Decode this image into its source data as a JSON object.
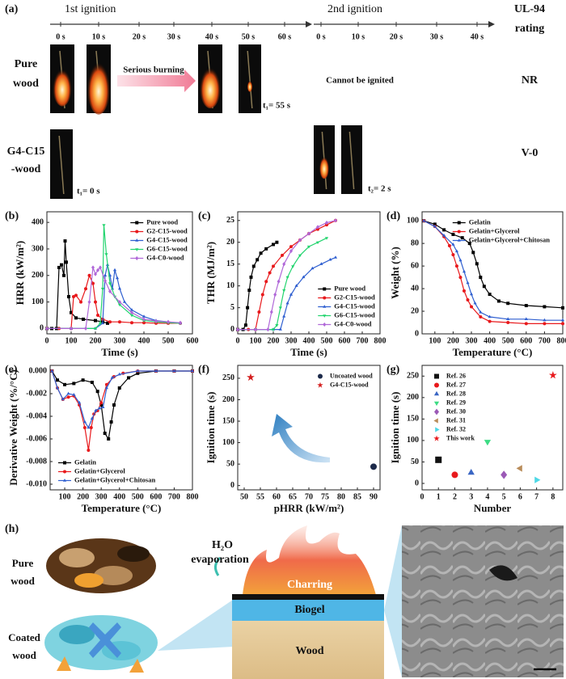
{
  "panel_a": {
    "label": "(a)",
    "first_ignition": "1st ignition",
    "first_ticks": [
      "0 s",
      "10 s",
      "20 s",
      "30 s",
      "40 s",
      "50 s",
      "60 s"
    ],
    "second_ignition": "2nd ignition",
    "second_ticks": [
      "0 s",
      "10 s",
      "20 s",
      "30 s",
      "40 s"
    ],
    "rating_title": [
      "UL-94",
      "rating"
    ],
    "rows": [
      {
        "sample": [
          "Pure",
          "wood"
        ],
        "annotation": "Serious burning",
        "time": "t₁= 55 s",
        "second": "Cannot be ignited",
        "rating": "NR"
      },
      {
        "sample": [
          "G4-C15",
          "-wood"
        ],
        "time": "t₁= 0 s",
        "second": "t₂= 2 s",
        "rating": "V-0"
      }
    ]
  },
  "chart_data": [
    {
      "type": "line",
      "panel": "(b)",
      "xlabel": "Time (s)",
      "ylabel": "HRR (kW/m²)",
      "xlim": [
        0,
        600
      ],
      "ylim": [
        -20,
        440
      ],
      "xticks": [
        0,
        100,
        200,
        300,
        400,
        500,
        600
      ],
      "yticks": [
        0,
        100,
        200,
        300,
        400
      ],
      "legend": "upper right",
      "series": [
        {
          "name": "Pure wood",
          "color": "#000000",
          "marker": "square",
          "x": [
            0,
            20,
            40,
            50,
            60,
            70,
            75,
            80,
            90,
            100,
            120,
            150,
            200,
            230,
            250
          ],
          "values": [
            0,
            0,
            0,
            230,
            240,
            200,
            330,
            250,
            120,
            60,
            40,
            35,
            30,
            25,
            20
          ]
        },
        {
          "name": "G2-C15-wood",
          "color": "#e8191c",
          "marker": "circle",
          "x": [
            0,
            50,
            100,
            110,
            120,
            140,
            160,
            175,
            190,
            200,
            210,
            230,
            260,
            300,
            350,
            400,
            450,
            500,
            550
          ],
          "values": [
            0,
            0,
            0,
            120,
            125,
            100,
            150,
            200,
            170,
            100,
            50,
            35,
            25,
            25,
            22,
            22,
            20,
            20,
            20
          ]
        },
        {
          "name": "G4-C15-wood",
          "color": "#2f5fd0",
          "marker": "triangle-up",
          "x": [
            0,
            100,
            200,
            230,
            240,
            250,
            260,
            270,
            280,
            290,
            300,
            320,
            350,
            400,
            450,
            500,
            550
          ],
          "values": [
            0,
            0,
            0,
            20,
            200,
            240,
            200,
            150,
            220,
            190,
            150,
            100,
            70,
            45,
            30,
            25,
            20
          ]
        },
        {
          "name": "G6-C15-wood",
          "color": "#22d46e",
          "marker": "triangle-down",
          "x": [
            0,
            100,
            200,
            220,
            230,
            235,
            245,
            260,
            280,
            300,
            350,
            400,
            450,
            500,
            550
          ],
          "values": [
            0,
            0,
            0,
            20,
            150,
            390,
            280,
            170,
            120,
            90,
            50,
            30,
            25,
            22,
            20
          ]
        },
        {
          "name": "G4-C0-wood",
          "color": "#b068d8",
          "marker": "diamond",
          "x": [
            0,
            100,
            160,
            175,
            190,
            200,
            210,
            220,
            240,
            260,
            300,
            350,
            400,
            450,
            500,
            550
          ],
          "values": [
            0,
            0,
            0,
            100,
            230,
            205,
            220,
            230,
            180,
            140,
            100,
            60,
            35,
            28,
            25,
            22
          ]
        }
      ]
    },
    {
      "type": "line",
      "panel": "(c)",
      "xlabel": "Time (s)",
      "ylabel": "THR (MJ/m²)",
      "xlim": [
        0,
        800
      ],
      "ylim": [
        -1,
        27
      ],
      "xticks": [
        0,
        100,
        200,
        300,
        400,
        500,
        600,
        700,
        800
      ],
      "yticks": [
        0,
        5,
        10,
        15,
        20,
        25
      ],
      "legend": "lower right",
      "series": [
        {
          "name": "Pure wood",
          "color": "#000000",
          "marker": "square",
          "x": [
            0,
            30,
            45,
            55,
            65,
            75,
            90,
            110,
            130,
            160,
            200,
            220
          ],
          "values": [
            0,
            0,
            1,
            5,
            9,
            12,
            14.5,
            16,
            17.5,
            18.5,
            19.5,
            20
          ]
        },
        {
          "name": "G2-C15-wood",
          "color": "#e8191c",
          "marker": "circle",
          "x": [
            0,
            60,
            100,
            120,
            140,
            160,
            180,
            200,
            250,
            300,
            350,
            400,
            450,
            500,
            550
          ],
          "values": [
            0,
            0,
            0,
            4,
            8,
            11,
            13,
            14.5,
            17,
            19,
            20.5,
            22,
            23,
            24,
            25
          ]
        },
        {
          "name": "G4-C15-wood",
          "color": "#2f5fd0",
          "marker": "triangle-up",
          "x": [
            0,
            100,
            200,
            240,
            260,
            280,
            300,
            330,
            370,
            420,
            470,
            520,
            550
          ],
          "values": [
            0,
            0,
            0,
            0,
            3,
            6,
            8,
            10,
            12,
            14,
            15,
            16,
            16.5
          ]
        },
        {
          "name": "G6-C15-wood",
          "color": "#22d46e",
          "marker": "triangle-down",
          "x": [
            0,
            100,
            200,
            220,
            240,
            260,
            280,
            310,
            350,
            400,
            450,
            500
          ],
          "values": [
            0,
            0,
            0,
            1,
            5,
            9,
            12,
            14.5,
            17,
            19,
            20,
            21
          ]
        },
        {
          "name": "G4-C0-wood",
          "color": "#b068d8",
          "marker": "diamond",
          "x": [
            0,
            100,
            170,
            190,
            210,
            230,
            260,
            300,
            350,
            400,
            450,
            500,
            550
          ],
          "values": [
            0,
            0,
            0,
            4,
            8,
            11,
            15,
            18,
            20.5,
            22,
            23.5,
            24.5,
            25
          ]
        }
      ]
    },
    {
      "type": "line",
      "panel": "(d)",
      "xlabel": "Temperature (°C)",
      "ylabel": "Weight (%)",
      "xlim": [
        30,
        800
      ],
      "ylim": [
        0,
        108
      ],
      "xticks": [
        100,
        200,
        300,
        400,
        500,
        600,
        700,
        800
      ],
      "yticks": [
        0,
        20,
        40,
        60,
        80,
        100
      ],
      "legend": "upper right",
      "series": [
        {
          "name": "Gelatin",
          "color": "#000000",
          "marker": "square",
          "x": [
            40,
            100,
            150,
            200,
            250,
            290,
            310,
            330,
            350,
            370,
            400,
            450,
            500,
            600,
            700,
            800
          ],
          "values": [
            100,
            97,
            92,
            88,
            85,
            80,
            72,
            62,
            50,
            42,
            35,
            29,
            27,
            25,
            24,
            23
          ]
        },
        {
          "name": "Gelatin+Glycerol",
          "color": "#e8191c",
          "marker": "circle",
          "x": [
            40,
            100,
            150,
            180,
            200,
            220,
            240,
            260,
            280,
            300,
            350,
            400,
            500,
            600,
            700,
            800
          ],
          "values": [
            100,
            95,
            86,
            78,
            70,
            60,
            50,
            38,
            30,
            24,
            15,
            11,
            10,
            9,
            9,
            9
          ]
        },
        {
          "name": "Gelatin+Glycerol+Chitosan",
          "color": "#2f5fd0",
          "marker": "triangle-up",
          "x": [
            40,
            100,
            150,
            200,
            220,
            240,
            260,
            280,
            300,
            320,
            350,
            400,
            500,
            600,
            700,
            800
          ],
          "values": [
            100,
            95,
            87,
            79,
            73,
            65,
            55,
            45,
            35,
            27,
            19,
            15,
            13,
            13,
            12,
            12
          ]
        }
      ]
    },
    {
      "type": "line",
      "panel": "(e)",
      "xlabel": "Temperature (°C)",
      "ylabel": "Derivative Weight (%/°C)",
      "xlim": [
        20,
        800
      ],
      "ylim": [
        -0.0105,
        0.0005
      ],
      "xticks": [
        100,
        200,
        300,
        400,
        500,
        600,
        700,
        800
      ],
      "yticks": [
        {
          "value": 0,
          "label": "0.000"
        },
        -0.002,
        -0.004,
        -0.006,
        -0.008,
        {
          "value": -0.01,
          "label": "-0.010"
        }
      ],
      "legend": "lower left",
      "series": [
        {
          "name": "Gelatin",
          "color": "#000000",
          "marker": "square",
          "x": [
            30,
            60,
            100,
            150,
            200,
            250,
            280,
            300,
            320,
            340,
            355,
            370,
            400,
            450,
            500,
            600,
            700,
            800
          ],
          "values": [
            0,
            -0.0008,
            -0.0012,
            -0.0011,
            -0.0008,
            -0.001,
            -0.0018,
            -0.003,
            -0.0055,
            -0.006,
            -0.0045,
            -0.003,
            -0.0015,
            -0.0006,
            -0.0002,
            0,
            0,
            0
          ]
        },
        {
          "name": "Gelatin+Glycerol",
          "color": "#e8191c",
          "marker": "circle",
          "x": [
            30,
            60,
            90,
            120,
            150,
            180,
            210,
            230,
            245,
            260,
            280,
            300,
            330,
            370,
            420,
            500,
            600,
            700,
            800
          ],
          "values": [
            0,
            -0.0015,
            -0.0025,
            -0.0023,
            -0.0022,
            -0.003,
            -0.005,
            -0.007,
            -0.005,
            -0.0038,
            -0.0035,
            -0.0028,
            -0.0012,
            -0.0005,
            -0.0002,
            0,
            0,
            0,
            0
          ]
        },
        {
          "name": "Gelatin+Glycerol+Chitosan",
          "color": "#2f5fd0",
          "marker": "triangle-up",
          "x": [
            30,
            60,
            90,
            120,
            150,
            180,
            210,
            230,
            250,
            270,
            290,
            310,
            330,
            360,
            400,
            500,
            600,
            700,
            800
          ],
          "values": [
            0,
            -0.0015,
            -0.0025,
            -0.002,
            -0.0021,
            -0.0028,
            -0.0045,
            -0.005,
            -0.0042,
            -0.0035,
            -0.0033,
            -0.0032,
            -0.0015,
            -0.0006,
            -0.0003,
            0,
            0,
            0,
            0
          ]
        }
      ]
    },
    {
      "type": "scatter",
      "panel": "(f)",
      "xlabel": "pHRR (kW/m²)",
      "ylabel": "Ignition time (s)",
      "xlim": [
        48,
        92
      ],
      "ylim": [
        -10,
        280
      ],
      "xticks": [
        50,
        55,
        60,
        65,
        70,
        75,
        80,
        85,
        90
      ],
      "yticks": [
        0,
        50,
        100,
        150,
        200,
        250
      ],
      "legend": "upper right",
      "series": [
        {
          "name": "Uncoated wood",
          "color": "#1c2a4a",
          "marker": "circle",
          "x": [
            90
          ],
          "values": [
            44
          ]
        },
        {
          "name": "G4-C15-wood",
          "color": "#d42020",
          "marker": "star",
          "x": [
            52
          ],
          "values": [
            252
          ]
        }
      ]
    },
    {
      "type": "scatter",
      "panel": "(g)",
      "xlabel": "Number",
      "ylabel": "Ignition time (s)",
      "xlim": [
        0,
        8.6
      ],
      "ylim": [
        -15,
        275
      ],
      "xticks": [
        0,
        1,
        2,
        3,
        4,
        5,
        6,
        7,
        8
      ],
      "yticks": [
        0,
        50,
        100,
        150,
        200,
        250
      ],
      "legend": "upper left",
      "series": [
        {
          "name": "Ref. 26",
          "color": "#111111",
          "marker": "square",
          "x": [
            1
          ],
          "values": [
            55
          ]
        },
        {
          "name": "Ref. 27",
          "color": "#e8191c",
          "marker": "circle",
          "x": [
            2
          ],
          "values": [
            20
          ]
        },
        {
          "name": "Ref. 28",
          "color": "#3a66c4",
          "marker": "triangle-up",
          "x": [
            3
          ],
          "values": [
            25
          ]
        },
        {
          "name": "Ref. 29",
          "color": "#3ddc84",
          "marker": "triangle-down",
          "x": [
            4
          ],
          "values": [
            97
          ]
        },
        {
          "name": "Ref. 30",
          "color": "#9b59b6",
          "marker": "diamond",
          "x": [
            5
          ],
          "values": [
            20
          ]
        },
        {
          "name": "Ref. 31",
          "color": "#b98c5a",
          "marker": "triangle-left",
          "x": [
            6
          ],
          "values": [
            35
          ]
        },
        {
          "name": "Ref. 32",
          "color": "#4dd8e6",
          "marker": "triangle-right",
          "x": [
            7
          ],
          "values": [
            8
          ]
        },
        {
          "name": "This work",
          "color": "#e8191c",
          "marker": "star",
          "x": [
            8
          ],
          "values": [
            252
          ]
        }
      ]
    }
  ],
  "panel_h": {
    "label": "(h)",
    "pure_wood": [
      "Pure",
      "wood"
    ],
    "coated_wood": [
      "Coated",
      "wood"
    ],
    "evaporation": [
      "H₂O",
      "evaporation"
    ],
    "layers": [
      "Charring",
      "Biogel",
      "Wood"
    ]
  }
}
